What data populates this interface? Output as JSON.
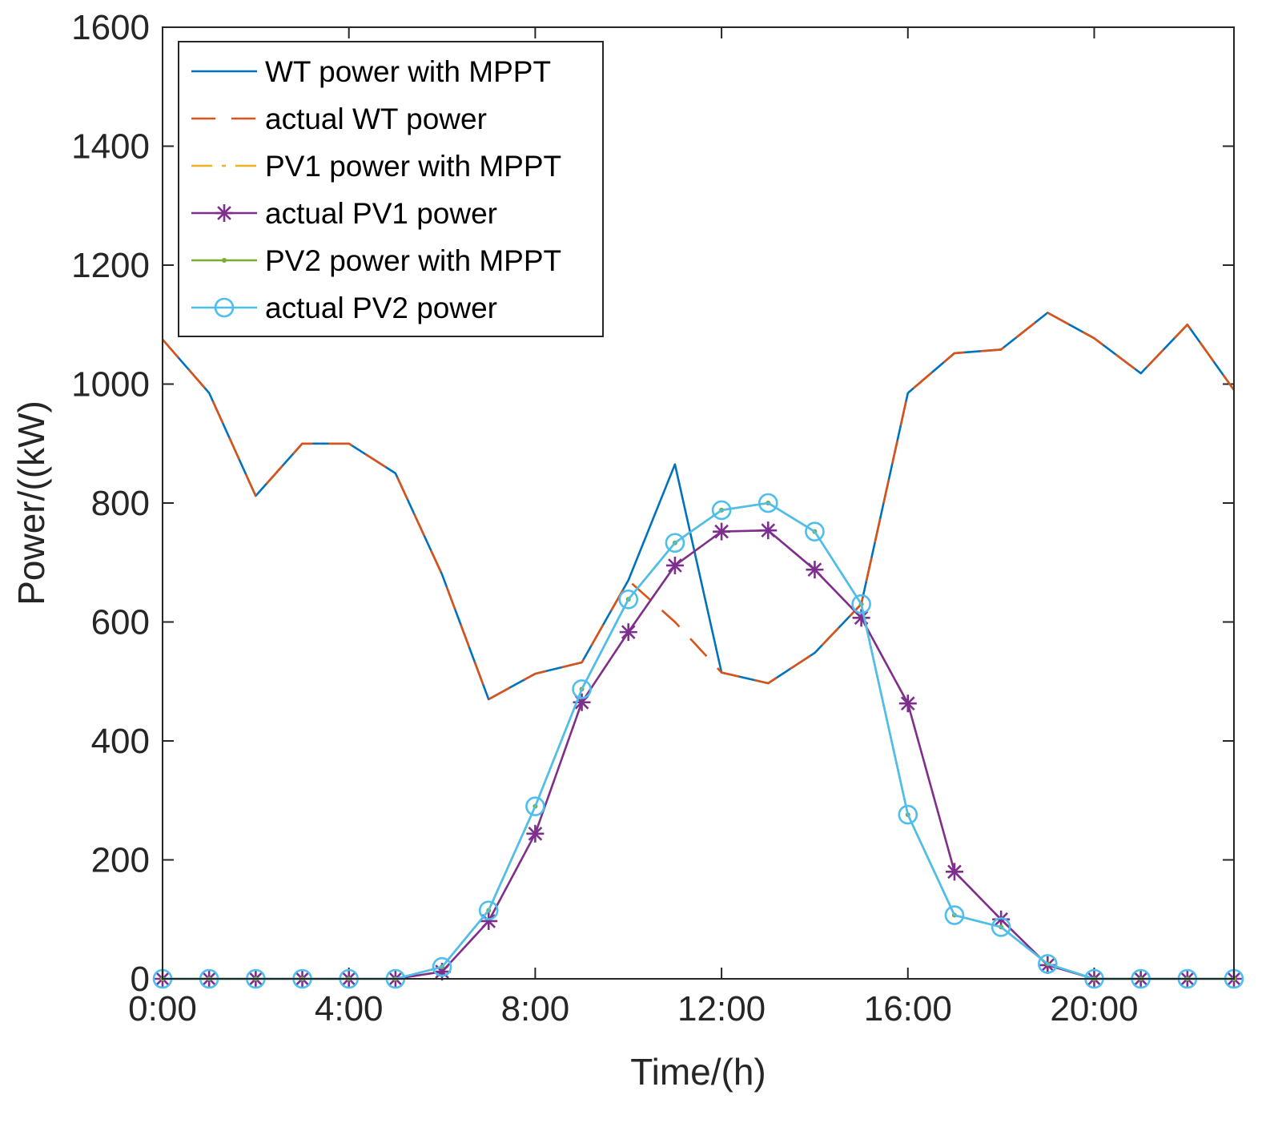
{
  "chart_data": {
    "type": "line",
    "title": "",
    "xlabel": "Time/(h)",
    "ylabel": "Power/((kW)",
    "xlim": [
      0,
      23
    ],
    "ylim": [
      0,
      1600
    ],
    "x": [
      0,
      1,
      2,
      3,
      4,
      5,
      6,
      7,
      8,
      9,
      10,
      11,
      12,
      13,
      14,
      15,
      16,
      17,
      18,
      19,
      20,
      21,
      22,
      23
    ],
    "xticks": [
      0,
      4,
      8,
      12,
      16,
      20
    ],
    "xtick_labels": [
      "0:00",
      "4:00",
      "8:00",
      "12:00",
      "16:00",
      "20:00"
    ],
    "yticks": [
      0,
      200,
      400,
      600,
      800,
      1000,
      1200,
      1400,
      1600
    ],
    "ytick_labels": [
      "0",
      "200",
      "400",
      "600",
      "800",
      "1000",
      "1200",
      "1400",
      "1600"
    ],
    "legend_position": "top-left",
    "series": [
      {
        "name": "WT power with MPPT",
        "color": "#0072BD",
        "style": "solid",
        "marker": "none",
        "values": [
          1075,
          985,
          812,
          900,
          900,
          850,
          680,
          470,
          513,
          532,
          670,
          865,
          515,
          497,
          548,
          630,
          985,
          1052,
          1058,
          1120,
          1077,
          1018,
          1100,
          990
        ]
      },
      {
        "name": "actual WT power",
        "color": "#D95319",
        "style": "dashed",
        "marker": "none",
        "values": [
          1075,
          985,
          812,
          900,
          900,
          850,
          680,
          470,
          513,
          532,
          670,
          600,
          515,
          497,
          548,
          630,
          985,
          1052,
          1058,
          1120,
          1077,
          1018,
          1100,
          990
        ]
      },
      {
        "name": "PV1 power with MPPT",
        "color": "#EDB120",
        "style": "dashdot",
        "marker": "none",
        "values": [
          0,
          0,
          0,
          0,
          0,
          0,
          12,
          97,
          244,
          465,
          583,
          695,
          752,
          754,
          688,
          607,
          463,
          180,
          100,
          23,
          0,
          0,
          0,
          0
        ]
      },
      {
        "name": "actual PV1 power",
        "color": "#7E2F8E",
        "style": "solid",
        "marker": "asterisk",
        "values": [
          0,
          0,
          0,
          0,
          0,
          0,
          12,
          97,
          244,
          465,
          583,
          695,
          752,
          754,
          688,
          607,
          463,
          180,
          100,
          23,
          0,
          0,
          0,
          0
        ]
      },
      {
        "name": "PV2 power with MPPT",
        "color": "#77AC30",
        "style": "solid",
        "marker": "dot",
        "values": [
          0,
          0,
          0,
          0,
          0,
          0,
          20,
          115,
          290,
          487,
          638,
          733,
          788,
          800,
          752,
          630,
          276,
          107,
          87,
          25,
          0,
          0,
          0,
          0
        ]
      },
      {
        "name": "actual PV2 power",
        "color": "#4DBEEE",
        "style": "solid",
        "marker": "circle",
        "values": [
          0,
          0,
          0,
          0,
          0,
          0,
          20,
          115,
          290,
          487,
          638,
          733,
          788,
          800,
          752,
          630,
          276,
          107,
          87,
          25,
          0,
          0,
          0,
          0
        ]
      }
    ]
  }
}
